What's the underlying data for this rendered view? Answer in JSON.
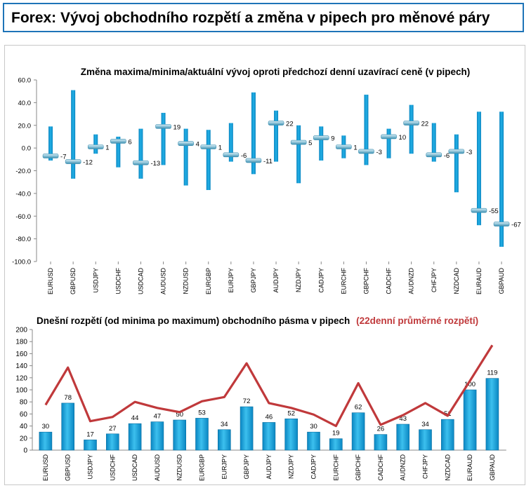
{
  "page_title": "Forex: Vývoj obchodního rozpětí a změna v pipech pro měnové páry",
  "colors": {
    "header_border": "#1e74b8",
    "bar": "#1aa0d8",
    "bar_dark": "#0a7ab0",
    "marker": "#7fb3c9",
    "line": "#c0393b",
    "title_red": "#c0393b"
  },
  "chart_data": [
    {
      "type": "range",
      "title": "Změna maxima/minima/aktuální vývoj oproti předchozí denní uzavírací ceně (v pipech)",
      "categories": [
        "EURUSD",
        "GBPUSD",
        "USDJPY",
        "USDCHF",
        "USDCAD",
        "AUDUSD",
        "NZDUSD",
        "EURGBP",
        "EURJPY",
        "GBPJPY",
        "AUDJPY",
        "NZDJPY",
        "CADJPY",
        "EURCHF",
        "GBPCHF",
        "CADCHF",
        "AUDNZD",
        "CHFJPY",
        "NZDCAD",
        "EURAUD",
        "GBPAUD"
      ],
      "high": [
        19,
        51,
        12,
        10,
        17,
        31,
        17,
        16,
        22,
        49,
        33,
        20,
        19,
        11,
        47,
        17,
        38,
        22,
        12,
        32,
        32
      ],
      "low": [
        -11,
        -27,
        -5,
        -17,
        -27,
        -15,
        -33,
        -37,
        -12,
        -23,
        -12,
        -31,
        -11,
        -9,
        -15,
        -9,
        -5,
        -12,
        -39,
        -68,
        -87
      ],
      "current": [
        -7,
        -12,
        1,
        6,
        -13,
        19,
        4,
        1,
        -6,
        -11,
        22,
        5,
        9,
        1,
        -3,
        10,
        22,
        -6,
        -3,
        -55,
        -67
      ],
      "labels": [
        "-7",
        "-12",
        "1",
        "6",
        "-13",
        "19",
        "4",
        "1",
        "-6",
        "-11",
        "22",
        "5",
        "9",
        "1",
        "-3",
        "10",
        "22",
        "-6",
        "-3",
        "-55",
        "-67"
      ],
      "ylim": [
        -100,
        60
      ],
      "yticks": [
        "60.0",
        "40.0",
        "20.0",
        "0.0",
        "-20.0",
        "-40.0",
        "-60.0",
        "-80.0",
        "-100.0"
      ],
      "ytick_values": [
        60,
        40,
        20,
        0,
        -20,
        -40,
        -60,
        -80,
        -100
      ],
      "grid": false
    },
    {
      "type": "bar",
      "title": "Dnešní rozpětí (od minima po maximum) obchodního pásma v pipech",
      "title_red": "(22denní průměrné rozpětí)",
      "categories": [
        "EURUSD",
        "GBPUSD",
        "USDJPY",
        "USDCHF",
        "USDCAD",
        "AUDUSD",
        "NZDUSD",
        "EURGBP",
        "EURJPY",
        "GBPJPY",
        "AUDJPY",
        "NZDJPY",
        "CADJPY",
        "EURCHF",
        "GBPCHF",
        "CADCHF",
        "AUDNZD",
        "CHFJPY",
        "NZDCAD",
        "EURAUD",
        "GBPAUD"
      ],
      "values": [
        30,
        78,
        17,
        27,
        44,
        47,
        50,
        53,
        34,
        72,
        46,
        52,
        30,
        19,
        62,
        26,
        43,
        34,
        51,
        100,
        119
      ],
      "labels": [
        "30",
        "78",
        "17",
        "27",
        "44",
        "47",
        "50",
        "53",
        "34",
        "72",
        "46",
        "52",
        "30",
        "19",
        "62",
        "26",
        "43",
        "34",
        "51",
        "100",
        "119"
      ],
      "series": [
        {
          "values": [
            75,
            137,
            48,
            55,
            80,
            70,
            63,
            81,
            88,
            144,
            78,
            70,
            59,
            40,
            111,
            42,
            58,
            78,
            57,
            115,
            174
          ]
        }
      ],
      "ylim": [
        0,
        200
      ],
      "yticks": [
        "200",
        "180",
        "160",
        "140",
        "120",
        "100",
        "80",
        "60",
        "40",
        "20",
        "0"
      ],
      "ytick_values": [
        200,
        180,
        160,
        140,
        120,
        100,
        80,
        60,
        40,
        20,
        0
      ],
      "grid": false
    }
  ]
}
